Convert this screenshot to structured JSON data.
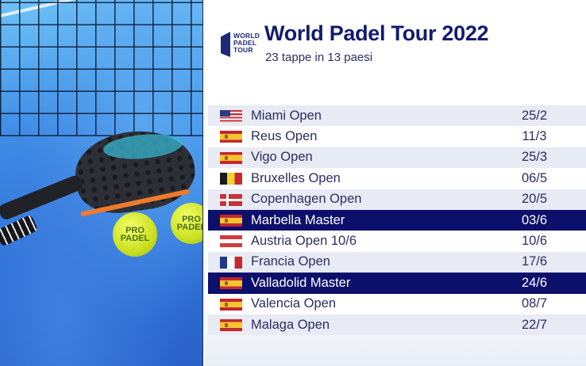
{
  "header": {
    "logo_lines": [
      "WORLD",
      "PADEL",
      "TOUR"
    ],
    "title": "World Padel Tour 2022",
    "subtitle": "23 tappe in 13 paesi"
  },
  "photo": {
    "ball_text_1": "PRO PADEL",
    "ball_text_2": "PRO PADEL"
  },
  "colors": {
    "title": "#121a6e",
    "highlight_row": "#0d106b",
    "alt_row": "#e8eaf4",
    "text": "#2a2f5e"
  },
  "tournaments": [
    {
      "flag": "us-flag",
      "name": "Miami Open",
      "date": "25/2",
      "style": "alt"
    },
    {
      "flag": "es-flag",
      "name": "Reus Open",
      "date": "11/3",
      "style": "white"
    },
    {
      "flag": "es-flag",
      "name": "Vigo Open",
      "date": "25/3",
      "style": "alt"
    },
    {
      "flag": "be-flag",
      "name": "Bruxelles Open",
      "date": "06/5",
      "style": "white"
    },
    {
      "flag": "dk-flag",
      "name": "Copenhagen Open",
      "date": "20/5",
      "style": "alt"
    },
    {
      "flag": "es-flag",
      "name": "Marbella Master",
      "date": "03/6",
      "style": "hl"
    },
    {
      "flag": "at-flag",
      "name": "Austria Open 10/6",
      "date": "10/6",
      "style": "white"
    },
    {
      "flag": "fr-flag",
      "name": "Francia Open",
      "date": "17/6",
      "style": "alt"
    },
    {
      "flag": "es-flag",
      "name": "Valladolid Master",
      "date": "24/6",
      "style": "hl"
    },
    {
      "flag": "es-flag",
      "name": "Valencia Open",
      "date": "08/7",
      "style": "white"
    },
    {
      "flag": "es-flag",
      "name": "Malaga Open",
      "date": "22/7",
      "style": "alt"
    }
  ]
}
